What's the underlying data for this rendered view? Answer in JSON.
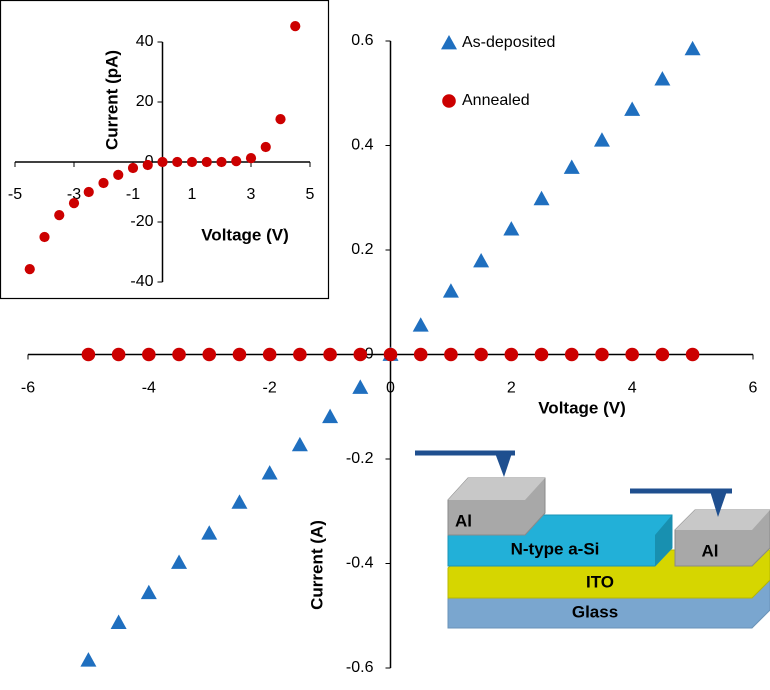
{
  "chart_data": [
    {
      "type": "scatter",
      "x_label": "Voltage (V)",
      "y_label": "Current (A)",
      "x": [
        -5,
        -4.5,
        -4,
        -3.5,
        -3,
        -2.5,
        -2,
        -1.5,
        -1,
        -0.5,
        0,
        0.5,
        1,
        1.5,
        2,
        2.5,
        3,
        3.5,
        4,
        4.5,
        5
      ],
      "series": [
        {
          "name": "As-deposited",
          "color": "#1f6fbf",
          "marker": "triangle",
          "values": [
            -0.585,
            -0.513,
            -0.456,
            -0.398,
            -0.342,
            -0.283,
            -0.227,
            -0.173,
            -0.119,
            -0.063,
            0,
            0.056,
            0.121,
            0.179,
            0.24,
            0.298,
            0.358,
            0.41,
            0.469,
            0.527,
            0.585
          ]
        },
        {
          "name": "Annealed",
          "color": "#cc0000",
          "marker": "circle",
          "values": [
            0,
            0,
            0,
            0,
            0,
            0,
            0,
            0,
            0,
            0,
            0,
            0,
            0,
            0,
            0,
            0,
            0,
            0,
            0,
            0,
            0
          ]
        }
      ],
      "xlim": [
        -6,
        6
      ],
      "xticks": [
        -6,
        -4,
        -2,
        0,
        2,
        4,
        6
      ],
      "ylim": [
        -0.6,
        0.6
      ],
      "yticks": [
        -0.6,
        -0.4,
        -0.2,
        0,
        0.2,
        0.4,
        0.6
      ],
      "legend": "top-right",
      "annotations": [
        "Al",
        "N-type a-Si",
        "Al",
        "ITO",
        "Glass"
      ]
    },
    {
      "type": "scatter",
      "x_label": "Voltage (V)",
      "y_label": "Current (pA)",
      "x": [
        -4.5,
        -4,
        -3.5,
        -3,
        -2.5,
        -2,
        -1.5,
        -1,
        -0.5,
        0,
        0.5,
        1,
        1.5,
        2,
        2.5,
        3,
        3.5,
        4,
        4.5
      ],
      "series": [
        {
          "name": null,
          "color": "#cc0000",
          "marker": "circle",
          "values": [
            -35.7,
            -25,
            -17.7,
            -13.7,
            -10,
            -7,
            -4.3,
            -2,
            -1,
            0,
            0,
            0,
            0,
            0,
            0.3,
            1.3,
            5,
            14.3,
            45.3
          ]
        }
      ],
      "xlim": [
        -5,
        5
      ],
      "xticks": [
        -5,
        -3,
        -1,
        1,
        3,
        5
      ],
      "ylim": [
        -40,
        40
      ],
      "yticks": [
        -40,
        -20,
        0,
        20,
        40
      ]
    }
  ]
}
